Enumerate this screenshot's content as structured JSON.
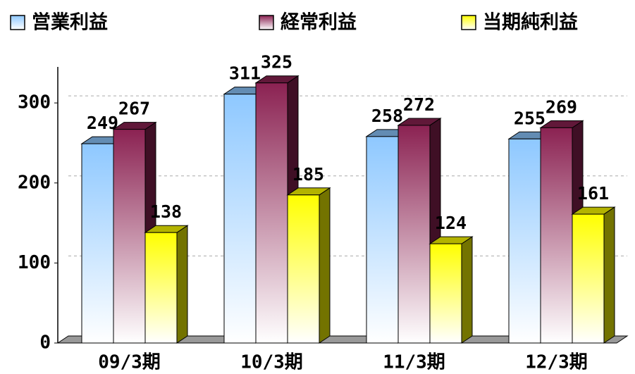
{
  "chart_data": {
    "type": "bar3d",
    "categories": [
      "09/3期",
      "10/3期",
      "11/3期",
      "12/3期"
    ],
    "series": [
      {
        "name": "営業利益",
        "color": "#8ec8ff",
        "values": [
          249,
          311,
          258,
          255
        ]
      },
      {
        "name": "経常利益",
        "color": "#8b2252",
        "values": [
          267,
          325,
          272,
          269
        ]
      },
      {
        "name": "当期純利益",
        "color": "#ffff00",
        "values": [
          138,
          185,
          124,
          161
        ]
      }
    ],
    "ylim": [
      0,
      345
    ],
    "yticks": [
      0,
      100,
      200,
      300
    ],
    "grid": true,
    "legend": "top"
  }
}
